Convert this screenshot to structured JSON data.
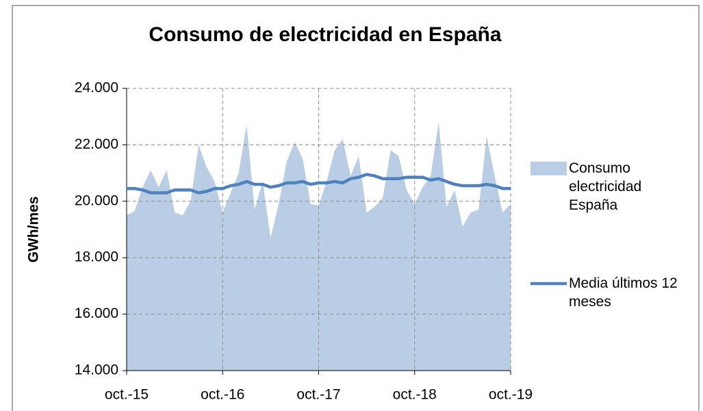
{
  "chart_data": {
    "type": "area_line",
    "title": "Consumo de electricidad en España",
    "y_label": "GWh/mes",
    "categories": [
      "oct.-15",
      null,
      null,
      null,
      null,
      null,
      null,
      null,
      null,
      null,
      null,
      null,
      "oct.-16",
      null,
      null,
      null,
      null,
      null,
      null,
      null,
      null,
      null,
      null,
      null,
      "oct.-17",
      null,
      null,
      null,
      null,
      null,
      null,
      null,
      null,
      null,
      null,
      null,
      "oct.-18",
      null,
      null,
      null,
      null,
      null,
      null,
      null,
      null,
      null,
      null,
      null,
      "oct.-19"
    ],
    "series": [
      {
        "name": "Consumo electricidad España",
        "kind": "area",
        "color": "#b9cde5",
        "values": [
          19500,
          19650,
          20500,
          21100,
          20500,
          21100,
          19600,
          19500,
          20000,
          22000,
          21200,
          20700,
          19600,
          20300,
          21000,
          22700,
          19700,
          20700,
          18700,
          19900,
          21400,
          22100,
          21500,
          19900,
          19850,
          20700,
          21800,
          22200,
          20900,
          21600,
          19600,
          19800,
          20100,
          21800,
          21600,
          20400,
          19900,
          20500,
          20900,
          22800,
          19800,
          20400,
          19100,
          19600,
          19700,
          22300,
          20900,
          19600,
          19900
        ]
      },
      {
        "name": "Media últimos 12 meses",
        "kind": "line",
        "color": "#4f81bd",
        "values": [
          20450,
          20450,
          20400,
          20300,
          20300,
          20300,
          20400,
          20400,
          20400,
          20300,
          20350,
          20450,
          20450,
          20550,
          20600,
          20700,
          20600,
          20600,
          20500,
          20550,
          20650,
          20650,
          20700,
          20600,
          20650,
          20650,
          20700,
          20650,
          20800,
          20850,
          20950,
          20900,
          20800,
          20800,
          20800,
          20850,
          20850,
          20850,
          20750,
          20800,
          20700,
          20600,
          20550,
          20550,
          20550,
          20600,
          20550,
          20450,
          20450
        ]
      }
    ],
    "ylim": [
      14000,
      24000
    ],
    "yticks": [
      {
        "value": 14000,
        "label": "14.000"
      },
      {
        "value": 16000,
        "label": "16.000"
      },
      {
        "value": 18000,
        "label": "18.000"
      },
      {
        "value": 20000,
        "label": "20.000"
      },
      {
        "value": 22000,
        "label": "22.000"
      },
      {
        "value": 24000,
        "label": "24.000"
      }
    ],
    "grid": true,
    "legend": "right"
  }
}
